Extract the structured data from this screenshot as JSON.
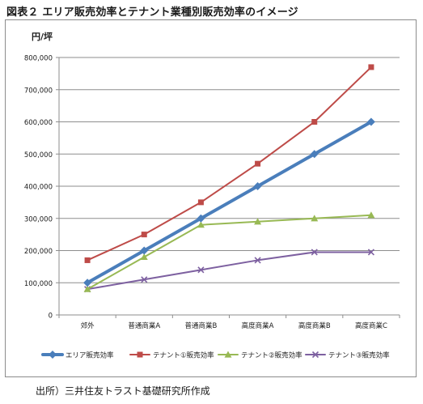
{
  "figure_title": "図表２ エリア販売効率とテナント業種別販売効率のイメージ",
  "source_note": "出所）三井住友トラスト基礎研究所作成",
  "chart_data": {
    "type": "line",
    "title": "",
    "xlabel": "",
    "ylabel": "円/坪",
    "ylim": [
      0,
      800000
    ],
    "yticks": [
      0,
      100000,
      200000,
      300000,
      400000,
      500000,
      600000,
      700000,
      800000
    ],
    "ytick_labels": [
      "0",
      "100,000",
      "200,000",
      "300,000",
      "400,000",
      "500,000",
      "600,000",
      "700,000",
      "800,000"
    ],
    "grid": true,
    "legend": "bottom",
    "categories": [
      "郊外",
      "普通商業A",
      "普通商業B",
      "高度商業A",
      "高度商業B",
      "高度商業C"
    ],
    "series": [
      {
        "name": "エリア販売効率",
        "values": [
          100000,
          200000,
          300000,
          400000,
          500000,
          600000
        ],
        "color": "#4a7ebb",
        "marker": "diamond",
        "width": 4
      },
      {
        "name": "テナント①販売効率",
        "values": [
          170000,
          250000,
          350000,
          470000,
          600000,
          770000
        ],
        "color": "#be4b48",
        "marker": "square",
        "width": 2
      },
      {
        "name": "テナント②販売効率",
        "values": [
          80000,
          180000,
          280000,
          290000,
          300000,
          310000
        ],
        "color": "#98b954",
        "marker": "triangle",
        "width": 2
      },
      {
        "name": "テナント③販売効率",
        "values": [
          80000,
          110000,
          140000,
          170000,
          195000,
          195000
        ],
        "color": "#7d60a0",
        "marker": "x",
        "width": 2
      }
    ]
  }
}
